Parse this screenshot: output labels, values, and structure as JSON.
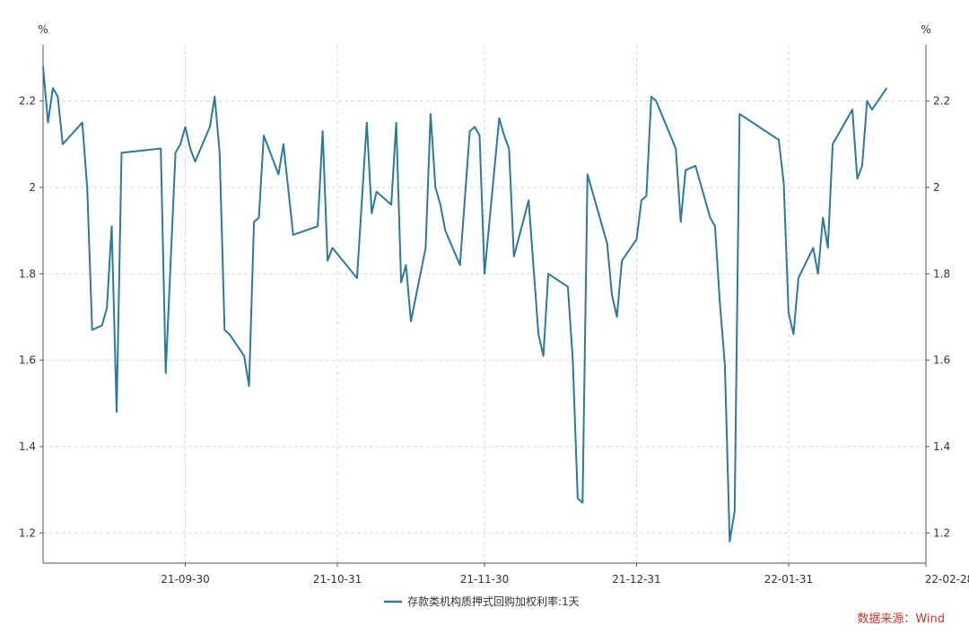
{
  "chart_data": {
    "type": "line",
    "left_unit": "%",
    "right_unit": "%",
    "ylim": [
      1.13,
      2.33
    ],
    "y_ticks": [
      1.2,
      1.4,
      1.6,
      1.8,
      2.0,
      2.2
    ],
    "y_tick_labels": [
      "1.2",
      "1.4",
      "1.6",
      "1.8",
      "2",
      "2.2"
    ],
    "x_range": [
      "2021-09-01",
      "2022-02-28"
    ],
    "x_ticks": [
      "2021-09-30",
      "2021-10-31",
      "2021-11-30",
      "2021-12-31",
      "2022-01-31",
      "2022-02-28"
    ],
    "x_tick_labels": [
      "21-09-30",
      "21-10-31",
      "21-11-30",
      "21-12-31",
      "22-01-31",
      "22-02-28"
    ],
    "grid": true,
    "legend_position": "bottom-center",
    "series": [
      {
        "name": "存款类机构质押式回购加权利率:1天",
        "color": "#2b7a9b",
        "points": [
          [
            "2021-09-01",
            2.28
          ],
          [
            "2021-09-02",
            2.15
          ],
          [
            "2021-09-03",
            2.23
          ],
          [
            "2021-09-04",
            2.21
          ],
          [
            "2021-09-05",
            2.1
          ],
          [
            "2021-09-09",
            2.15
          ],
          [
            "2021-09-10",
            2.0
          ],
          [
            "2021-09-11",
            1.67
          ],
          [
            "2021-09-13",
            1.68
          ],
          [
            "2021-09-14",
            1.72
          ],
          [
            "2021-09-15",
            1.91
          ],
          [
            "2021-09-16",
            1.48
          ],
          [
            "2021-09-17",
            2.08
          ],
          [
            "2021-09-25",
            2.09
          ],
          [
            "2021-09-26",
            1.57
          ],
          [
            "2021-09-28",
            2.08
          ],
          [
            "2021-09-29",
            2.1
          ],
          [
            "2021-09-30",
            2.14
          ],
          [
            "2021-10-01",
            2.09
          ],
          [
            "2021-10-02",
            2.06
          ],
          [
            "2021-10-05",
            2.14
          ],
          [
            "2021-10-06",
            2.21
          ],
          [
            "2021-10-07",
            2.08
          ],
          [
            "2021-10-08",
            1.67
          ],
          [
            "2021-10-09",
            1.66
          ],
          [
            "2021-10-12",
            1.61
          ],
          [
            "2021-10-13",
            1.54
          ],
          [
            "2021-10-14",
            1.92
          ],
          [
            "2021-10-15",
            1.93
          ],
          [
            "2021-10-16",
            2.12
          ],
          [
            "2021-10-19",
            2.03
          ],
          [
            "2021-10-20",
            2.1
          ],
          [
            "2021-10-22",
            1.89
          ],
          [
            "2021-10-27",
            1.91
          ],
          [
            "2021-10-28",
            2.13
          ],
          [
            "2021-10-29",
            1.83
          ],
          [
            "2021-10-30",
            1.86
          ],
          [
            "2021-11-04",
            1.79
          ],
          [
            "2021-11-06",
            2.15
          ],
          [
            "2021-11-07",
            1.94
          ],
          [
            "2021-11-08",
            1.99
          ],
          [
            "2021-11-11",
            1.96
          ],
          [
            "2021-11-12",
            2.15
          ],
          [
            "2021-11-13",
            1.78
          ],
          [
            "2021-11-14",
            1.82
          ],
          [
            "2021-11-15",
            1.69
          ],
          [
            "2021-11-18",
            1.86
          ],
          [
            "2021-11-19",
            2.17
          ],
          [
            "2021-11-20",
            2.0
          ],
          [
            "2021-11-21",
            1.96
          ],
          [
            "2021-11-22",
            1.9
          ],
          [
            "2021-11-25",
            1.82
          ],
          [
            "2021-11-27",
            2.13
          ],
          [
            "2021-11-28",
            2.14
          ],
          [
            "2021-11-29",
            2.12
          ],
          [
            "2021-11-30",
            1.8
          ],
          [
            "2021-12-01",
            1.92
          ],
          [
            "2021-12-03",
            2.16
          ],
          [
            "2021-12-04",
            2.12
          ],
          [
            "2021-12-05",
            2.09
          ],
          [
            "2021-12-06",
            1.84
          ],
          [
            "2021-12-09",
            1.97
          ],
          [
            "2021-12-11",
            1.66
          ],
          [
            "2021-12-12",
            1.61
          ],
          [
            "2021-12-13",
            1.8
          ],
          [
            "2021-12-17",
            1.77
          ],
          [
            "2021-12-18",
            1.6
          ],
          [
            "2021-12-19",
            1.28
          ],
          [
            "2021-12-20",
            1.27
          ],
          [
            "2021-12-21",
            2.03
          ],
          [
            "2021-12-25",
            1.87
          ],
          [
            "2021-12-26",
            1.75
          ],
          [
            "2021-12-27",
            1.7
          ],
          [
            "2021-12-28",
            1.83
          ],
          [
            "2021-12-31",
            1.88
          ],
          [
            "2022-01-01",
            1.97
          ],
          [
            "2022-01-02",
            1.98
          ],
          [
            "2022-01-03",
            2.21
          ],
          [
            "2022-01-04",
            2.2
          ],
          [
            "2022-01-08",
            2.09
          ],
          [
            "2022-01-09",
            1.92
          ],
          [
            "2022-01-10",
            2.04
          ],
          [
            "2022-01-12",
            2.05
          ],
          [
            "2022-01-15",
            1.93
          ],
          [
            "2022-01-16",
            1.91
          ],
          [
            "2022-01-17",
            1.73
          ],
          [
            "2022-01-18",
            1.59
          ],
          [
            "2022-01-19",
            1.18
          ],
          [
            "2022-01-20",
            1.25
          ],
          [
            "2022-01-21",
            2.17
          ],
          [
            "2022-01-29",
            2.11
          ],
          [
            "2022-01-30",
            2.01
          ],
          [
            "2022-01-31",
            1.71
          ],
          [
            "2022-02-01",
            1.66
          ],
          [
            "2022-02-02",
            1.79
          ],
          [
            "2022-02-05",
            1.86
          ],
          [
            "2022-02-06",
            1.8
          ],
          [
            "2022-02-07",
            1.93
          ],
          [
            "2022-02-08",
            1.86
          ],
          [
            "2022-02-09",
            2.1
          ],
          [
            "2022-02-13",
            2.18
          ],
          [
            "2022-02-14",
            2.02
          ],
          [
            "2022-02-15",
            2.05
          ],
          [
            "2022-02-16",
            2.2
          ],
          [
            "2022-02-17",
            2.18
          ],
          [
            "2022-02-20",
            2.23
          ]
        ]
      }
    ]
  },
  "source_note": "数据来源：Wind",
  "colors": {
    "line": "#2b7a9b",
    "grid": "#d9d9d9",
    "axis": "#555555",
    "source": "#c0392b"
  }
}
